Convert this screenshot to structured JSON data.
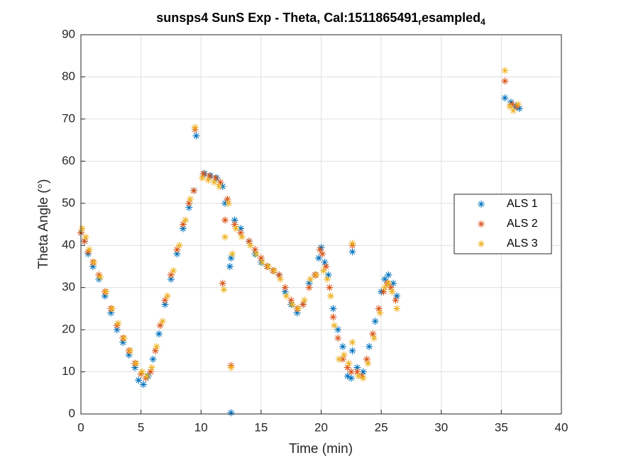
{
  "chart_data": {
    "type": "scatter",
    "title_parts": [
      "sunsps4 SunS Exp - Theta, Cal:1511865491",
      "r",
      "esampled",
      "4"
    ],
    "xlabel": "Time (min)",
    "ylabel": "Theta Angle (°)",
    "xlim": [
      0,
      40
    ],
    "xticks": [
      0,
      5,
      10,
      15,
      20,
      25,
      30,
      35,
      40
    ],
    "ylim": [
      0,
      90
    ],
    "yticks": [
      0,
      10,
      20,
      30,
      40,
      50,
      60,
      70,
      80,
      90
    ],
    "grid": true,
    "legend": "right",
    "series": [
      {
        "name": "ALS 1",
        "color": "#0072bd",
        "x": [
          0,
          0.3,
          0.6,
          1,
          1.5,
          2,
          2.5,
          3,
          3.5,
          4,
          4.5,
          4.8,
          5.2,
          5.6,
          6,
          6.5,
          7,
          7.5,
          8,
          8.5,
          9,
          9.4,
          9.6,
          10.3,
          10.8,
          11.3,
          11.8,
          12,
          12.4,
          12.5,
          12.5,
          12.8,
          13.3,
          14,
          14.5,
          15,
          15.5,
          16,
          16.5,
          17,
          17.5,
          18,
          18.5,
          19,
          19.5,
          19.8,
          20,
          20.3,
          20.6,
          21,
          21.4,
          21.8,
          22.2,
          22.5,
          22.6,
          22.6,
          23,
          23.5,
          24,
          24.5,
          25,
          25.3,
          25.6,
          26,
          26.3,
          35.3,
          35.8,
          36.2,
          36.5
        ],
        "values": [
          43,
          41,
          38,
          35,
          32,
          28,
          24,
          20,
          17,
          14,
          11,
          8,
          7,
          9,
          13,
          19,
          26,
          32,
          38,
          44,
          49,
          53,
          66,
          57,
          56.5,
          56,
          54,
          50,
          35,
          0.3,
          37,
          46,
          44,
          41,
          38,
          36,
          35,
          34,
          33,
          29,
          26,
          24,
          26,
          31,
          33,
          37,
          39.5,
          36,
          33,
          25,
          20,
          16,
          9,
          8.5,
          15,
          38.5,
          11,
          10,
          16,
          22,
          29,
          32,
          33,
          31,
          28,
          75,
          74,
          73,
          72.5
        ]
      },
      {
        "name": "ALS 2",
        "color": "#d95319",
        "x": [
          0,
          0.3,
          0.6,
          1,
          1.5,
          2,
          2.5,
          3,
          3.5,
          4,
          4.5,
          5,
          5.4,
          5.8,
          6.2,
          6.6,
          7,
          7.5,
          8,
          8.5,
          9,
          9.4,
          9.5,
          10.2,
          10.7,
          11.2,
          11.6,
          11.8,
          12,
          12.2,
          12.5,
          12.8,
          13.3,
          14,
          14.5,
          15,
          15.5,
          16,
          16.5,
          17,
          17.5,
          18,
          18.5,
          19,
          19.5,
          19.9,
          20.1,
          20.4,
          20.7,
          21,
          21.4,
          21.8,
          22.2,
          22.5,
          22.6,
          23,
          23.4,
          23.8,
          24.3,
          24.8,
          25.2,
          25.5,
          25.8,
          26.2,
          35.3,
          35.9,
          36.3
        ],
        "values": [
          43,
          41,
          38.5,
          36,
          33,
          29,
          25,
          21,
          18,
          15,
          12,
          9.5,
          8.5,
          10,
          15,
          21,
          27,
          33,
          39,
          45,
          50,
          53,
          67.5,
          57,
          56.5,
          56,
          55,
          31,
          46,
          51,
          11.5,
          45,
          43,
          41,
          39,
          37,
          35,
          34,
          33,
          30,
          27,
          25,
          26,
          30,
          33,
          39,
          38,
          35,
          30,
          23,
          18,
          13,
          11,
          10,
          40,
          10,
          9,
          13,
          19,
          25,
          29,
          31,
          30,
          27,
          79,
          73.5,
          73
        ]
      },
      {
        "name": "ALS 3",
        "color": "#edb120",
        "x": [
          0.1,
          0.4,
          0.7,
          1.1,
          1.6,
          2.1,
          2.6,
          3.1,
          3.6,
          4.1,
          4.6,
          5.1,
          5.5,
          5.9,
          6.3,
          6.8,
          7.2,
          7.7,
          8.2,
          8.7,
          9.1,
          9.5,
          10.1,
          10.6,
          11.1,
          11.5,
          11.9,
          12,
          12.3,
          12.5,
          12.6,
          12.9,
          13.4,
          14.1,
          14.6,
          15.1,
          15.6,
          16.1,
          16.6,
          17.1,
          17.6,
          18.1,
          18.6,
          19.1,
          19.6,
          20.2,
          20.5,
          20.8,
          21.1,
          21.5,
          21.9,
          22.3,
          22.6,
          22.6,
          23.1,
          23.5,
          23.9,
          24.4,
          24.9,
          25.3,
          25.6,
          25.9,
          26.3,
          35.3,
          35.7,
          36,
          36.4
        ],
        "values": [
          44,
          42,
          39,
          36,
          32.5,
          29,
          25,
          21.5,
          18,
          15,
          12,
          10,
          9,
          11,
          16,
          22,
          28,
          34,
          40,
          46,
          51,
          68,
          56,
          55.5,
          55,
          54,
          29.5,
          42,
          50,
          11,
          38,
          44,
          42,
          40,
          38,
          36,
          35,
          34,
          32,
          28,
          26,
          25,
          27,
          32,
          33,
          34,
          32,
          28,
          21,
          13,
          14,
          12,
          17,
          40.5,
          9,
          8.5,
          12,
          18,
          24,
          30,
          31,
          29,
          25,
          81.5,
          73,
          72,
          73.5
        ]
      }
    ]
  }
}
